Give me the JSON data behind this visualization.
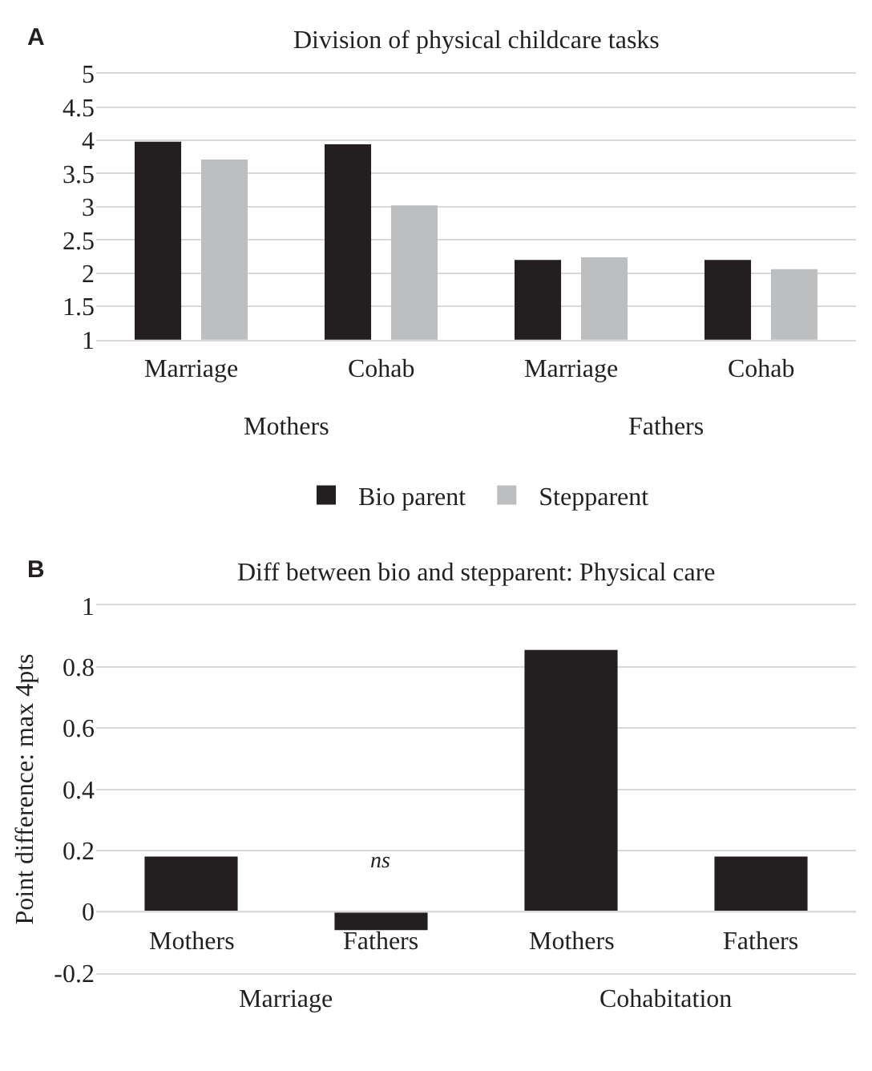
{
  "chart_data": [
    {
      "type": "bar",
      "title": "Division of physical childcare tasks",
      "categories": [
        "Marriage",
        "Cohab",
        "Marriage",
        "Cohab"
      ],
      "series": [
        {
          "name": "Bio parent",
          "color": "#231f20",
          "values": [
            3.98,
            3.94,
            2.2,
            2.2
          ]
        },
        {
          "name": "Stepparent",
          "color": "#bcbec0",
          "values": [
            3.71,
            3.02,
            2.24,
            2.06
          ]
        }
      ],
      "ylim": [
        1,
        5
      ],
      "yticks": [
        1,
        1.5,
        2,
        2.5,
        3,
        3.5,
        4,
        4.5,
        5
      ],
      "grid": "y",
      "legend": "bottom",
      "annotations": [
        "A",
        "Mothers",
        "Fathers"
      ]
    },
    {
      "type": "bar",
      "title": "Diff between bio and stepparent: Physical care",
      "ylabel": "Point difference: max 4pts",
      "categories": [
        "Mothers",
        "Fathers",
        "Mothers",
        "Fathers"
      ],
      "series": [
        {
          "color": "#231f20",
          "values": [
            0.18,
            -0.06,
            0.855,
            0.18
          ],
          "value_labels": [
            null,
            "ns",
            null,
            null
          ]
        }
      ],
      "ylim": [
        -0.2,
        1
      ],
      "yticks": [
        -0.2,
        0,
        0.2,
        0.4,
        0.6,
        0.8,
        1
      ],
      "grid": "y",
      "annotations": [
        "B",
        "Marriage",
        "Cohabitation"
      ]
    }
  ]
}
